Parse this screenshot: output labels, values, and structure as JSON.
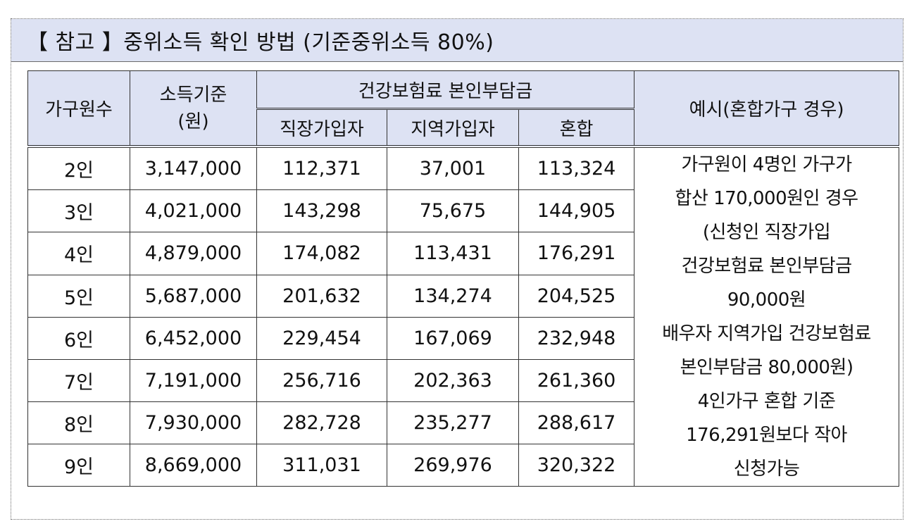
{
  "title": "【 참고 】중위소득 확인 방법 (기준중위소득 80%)",
  "headers": {
    "household": "가구원수",
    "income_line1": "소득기준",
    "income_line2": "(원)",
    "premium_group": "건강보험료 본인부담금",
    "employee": "직장가입자",
    "regional": "지역가입자",
    "mixed": "혼합",
    "example": "예시(혼합가구 경우)"
  },
  "rows": [
    {
      "household": "2인",
      "income": "3,147,000",
      "employee": "112,371",
      "regional": "37,001",
      "mixed": "113,324"
    },
    {
      "household": "3인",
      "income": "4,021,000",
      "employee": "143,298",
      "regional": "75,675",
      "mixed": "144,905"
    },
    {
      "household": "4인",
      "income": "4,879,000",
      "employee": "174,082",
      "regional": "113,431",
      "mixed": "176,291"
    },
    {
      "household": "5인",
      "income": "5,687,000",
      "employee": "201,632",
      "regional": "134,274",
      "mixed": "204,525"
    },
    {
      "household": "6인",
      "income": "6,452,000",
      "employee": "229,454",
      "regional": "167,069",
      "mixed": "232,948"
    },
    {
      "household": "7인",
      "income": "7,191,000",
      "employee": "256,716",
      "regional": "202,363",
      "mixed": "261,360"
    },
    {
      "household": "8인",
      "income": "7,930,000",
      "employee": "282,728",
      "regional": "235,277",
      "mixed": "288,617"
    },
    {
      "household": "9인",
      "income": "8,669,000",
      "employee": "311,031",
      "regional": "269,976",
      "mixed": "320,322"
    }
  ],
  "example_lines": [
    "가구원이 4명인 가구가",
    "합산 170,000원인 경우",
    "(신청인 직장가입",
    "건강보험료 본인부담금",
    "90,000원",
    "배우자 지역가입 건강보험료",
    "본인부담금 80,000원)",
    "4인가구 혼합 기준",
    "176,291원보다 작아",
    "신청가능"
  ]
}
